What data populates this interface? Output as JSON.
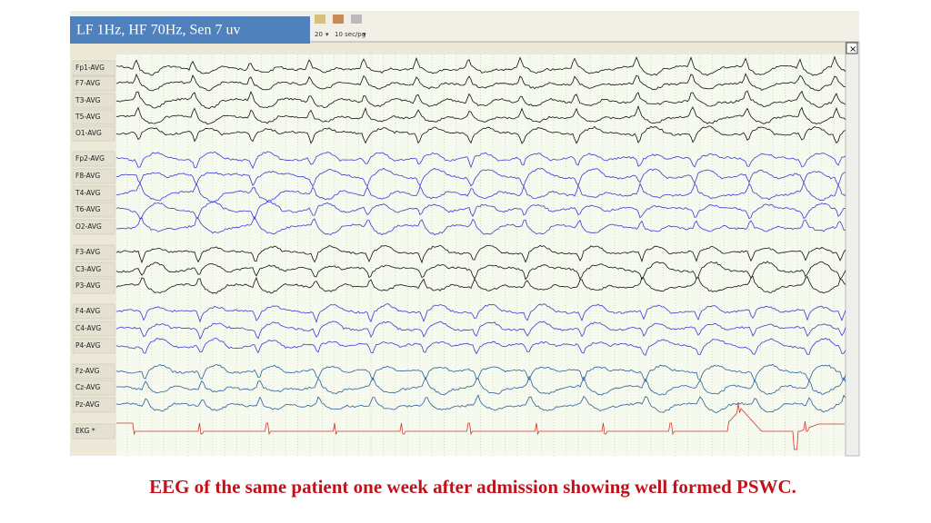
{
  "header": {
    "filter_label": "LF 1Hz, HF 70Hz, Sen 7 uv"
  },
  "toolbar": {
    "page_count": "20",
    "page_speed": "10 sec/pg"
  },
  "channels": [
    "Fp1-AVG",
    "F7-AVG",
    "T3-AVG",
    "T5-AVG",
    "O1-AVG",
    "Fp2-AVG",
    "F8-AVG",
    "T4-AVG",
    "T6-AVG",
    "O2-AVG",
    "F3-AVG",
    "C3-AVG",
    "P3-AVG",
    "F4-AVG",
    "C4-AVG",
    "P4-AVG",
    "Fz-AVG",
    "Cz-AVG",
    "Pz-AVG",
    "EKG *"
  ],
  "caption": "EEG of the same  patient one week after admission showing well formed PSWC."
}
